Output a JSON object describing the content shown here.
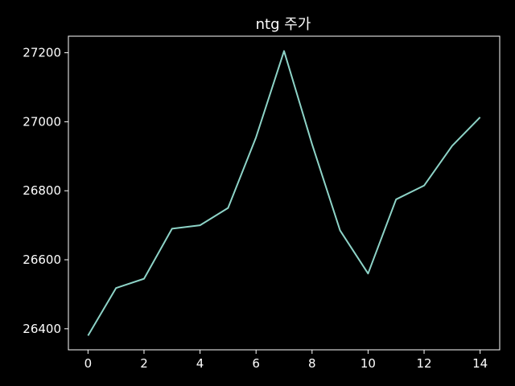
{
  "chart_data": {
    "type": "line",
    "title": "ntg 주가",
    "xlabel": "",
    "ylabel": "",
    "x": [
      0,
      1,
      2,
      3,
      4,
      5,
      6,
      7,
      8,
      9,
      10,
      11,
      12,
      13,
      14
    ],
    "series": [
      {
        "values": [
          26380,
          26518,
          26545,
          26690,
          26700,
          26750,
          26955,
          27205,
          26935,
          26685,
          26560,
          26775,
          26815,
          26930,
          27013
        ]
      }
    ],
    "xlim": [
      -0.7,
      14.7
    ],
    "ylim": [
      26339,
      27248
    ],
    "xticks": [
      0,
      2,
      4,
      6,
      8,
      10,
      12,
      14
    ],
    "yticks": [
      26400,
      26600,
      26800,
      27000,
      27200
    ],
    "grid": false,
    "colors": {
      "background": "#000000",
      "axes": "#ffffff",
      "text": "#ffffff",
      "line": "#8dd3c7"
    }
  }
}
